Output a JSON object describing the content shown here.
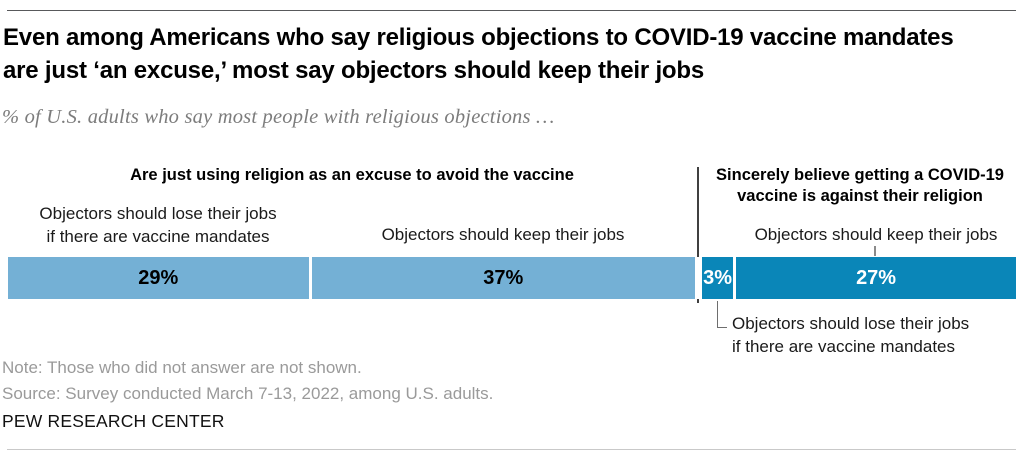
{
  "header": {
    "title": "Even among Americans who say religious objections to COVID-19 vaccine mandates are just ‘an excuse,’ most say objectors should keep their jobs",
    "subtitle": "% of U.S. adults who say most people with religious objections …"
  },
  "chart_data": {
    "type": "bar",
    "variant": "horizontal-stacked",
    "unit": "%",
    "xlim": [
      0,
      100
    ],
    "grid": false,
    "colors": {
      "light_blue": "#74b0d5",
      "dark_blue": "#0a86b8"
    },
    "groups": [
      {
        "header_lines": [
          "Are just using religion as an excuse to avoid the vaccine"
        ],
        "color": "#74b0d5",
        "value_label_color": "#000000",
        "segments": [
          {
            "label_lines": [
              "Objectors should lose their jobs",
              "if there are vaccine mandates"
            ],
            "value": 29,
            "display": "29%"
          },
          {
            "label_lines": [
              "Objectors should keep their jobs"
            ],
            "value": 37,
            "display": "37%"
          }
        ]
      },
      {
        "header_lines": [
          "Sincerely believe getting a COVID-19",
          "vaccine is against their religion"
        ],
        "color": "#0a86b8",
        "value_label_color": "#ffffff",
        "segments": [
          {
            "label_lines": [
              "Objectors should lose their jobs",
              "if there are vaccine mandates"
            ],
            "value": 3,
            "display": "3%",
            "callout": true
          },
          {
            "label_lines": [
              "Objectors should keep their jobs"
            ],
            "value": 27,
            "display": "27%"
          }
        ]
      }
    ]
  },
  "footer": {
    "note": "Note: Those who did not answer are not shown.",
    "source": "Source: Survey conducted March 7-13, 2022, among U.S. adults.",
    "brand": "PEW RESEARCH CENTER"
  }
}
